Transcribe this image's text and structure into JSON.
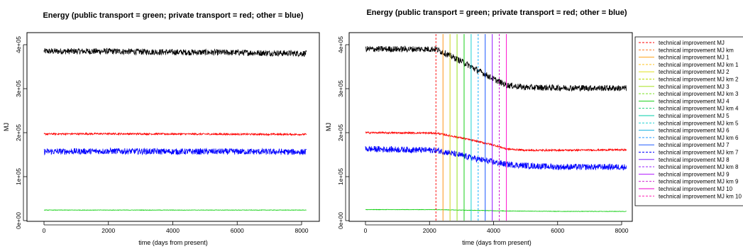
{
  "chart_data": [
    {
      "type": "line",
      "title": "Energy (public transport = green; private transport = red; other = blue)",
      "xlabel": "time (days from present)",
      "ylabel": "MJ",
      "xlim": [
        0,
        8200
      ],
      "ylim": [
        0,
        420000
      ],
      "x_ticks": [
        0,
        2000,
        4000,
        6000,
        8000
      ],
      "x_tick_labels": [
        "0",
        "2000",
        "4000",
        "6000",
        "8000"
      ],
      "y_ticks": [
        0,
        100000,
        200000,
        300000,
        400000
      ],
      "y_tick_labels": [
        "0e+00",
        "1e+05",
        "2e+05",
        "3e+05",
        "4e+05"
      ],
      "grid": false,
      "series": [
        {
          "color": "#000000",
          "x": [
            0,
            2000,
            4000,
            6000,
            8150
          ],
          "values": [
            385000,
            385000,
            383000,
            382000,
            380000
          ],
          "noise": 7000
        },
        {
          "color": "#ff0000",
          "x": [
            0,
            2000,
            4000,
            6000,
            8150
          ],
          "values": [
            197000,
            197500,
            197000,
            196500,
            196000
          ],
          "noise": 2000
        },
        {
          "color": "#0000ff",
          "x": [
            0,
            2000,
            4000,
            6000,
            8150
          ],
          "values": [
            157000,
            158000,
            157000,
            157000,
            156000
          ],
          "noise": 7000
        },
        {
          "color": "#00cc00",
          "x": [
            0,
            2000,
            4000,
            6000,
            8150
          ],
          "values": [
            24000,
            24000,
            24000,
            24000,
            24000
          ],
          "noise": 500
        }
      ]
    },
    {
      "type": "line",
      "title": "Energy (public transport = green; private transport = red; other = blue)",
      "xlabel": "time (days from present)",
      "ylabel": "MJ",
      "xlim": [
        0,
        8200
      ],
      "ylim": [
        0,
        420000
      ],
      "x_ticks": [
        0,
        2000,
        4000,
        6000,
        8000
      ],
      "x_tick_labels": [
        "0",
        "2000",
        "4000",
        "6000",
        "8000"
      ],
      "y_ticks": [
        0,
        100000,
        200000,
        300000,
        400000
      ],
      "y_tick_labels": [
        "0e+00",
        "1e+05",
        "2e+05",
        "3e+05",
        "4e+05"
      ],
      "grid": false,
      "legend_position": "right",
      "series": [
        {
          "color": "#000000",
          "x": [
            0,
            2200,
            2500,
            3000,
            3500,
            4000,
            4400,
            5000,
            6000,
            8150
          ],
          "values": [
            390000,
            390000,
            380000,
            362000,
            342000,
            322000,
            308000,
            303000,
            302000,
            301000
          ],
          "noise": 7000
        },
        {
          "color": "#ff0000",
          "x": [
            0,
            2200,
            2500,
            3000,
            3500,
            4000,
            4400,
            5000,
            6000,
            8150
          ],
          "values": [
            200000,
            199000,
            195000,
            188000,
            180000,
            172000,
            163000,
            160000,
            160000,
            161000
          ],
          "noise": 2000
        },
        {
          "color": "#0000ff",
          "x": [
            0,
            2200,
            2500,
            3000,
            3500,
            4000,
            4400,
            5000,
            6000,
            8150
          ],
          "values": [
            163000,
            160000,
            156000,
            148000,
            140000,
            133000,
            128000,
            125000,
            122000,
            122000
          ],
          "noise": 7000
        },
        {
          "color": "#00cc00",
          "x": [
            0,
            2200,
            4400,
            6000,
            8150
          ],
          "values": [
            25000,
            25000,
            22000,
            21000,
            21000
          ],
          "noise": 500
        }
      ],
      "vertical_lines": [
        {
          "x": 2200,
          "color": "#ff0000",
          "dashed": true
        },
        {
          "x": 2420,
          "color": "#ff8800",
          "dashed": false
        },
        {
          "x": 2640,
          "color": "#cccc00",
          "dashed": false
        },
        {
          "x": 2860,
          "color": "#88dd00",
          "dashed": false
        },
        {
          "x": 3080,
          "color": "#00cc00",
          "dashed": false
        },
        {
          "x": 3300,
          "color": "#00cccc",
          "dashed": false
        },
        {
          "x": 3520,
          "color": "#00aaff",
          "dashed": true
        },
        {
          "x": 3740,
          "color": "#0044ff",
          "dashed": false
        },
        {
          "x": 3960,
          "color": "#8800ff",
          "dashed": false
        },
        {
          "x": 4180,
          "color": "#cc00cc",
          "dashed": true
        },
        {
          "x": 4400,
          "color": "#ff00cc",
          "dashed": false
        }
      ],
      "legend": [
        {
          "label": "technical improvement  MJ",
          "color": "#ff0000",
          "dashed": true
        },
        {
          "label": "technical improvement  MJ km",
          "color": "#ff6600",
          "dashed": true
        },
        {
          "label": "technical improvement  MJ  1",
          "color": "#ff9900",
          "dashed": false
        },
        {
          "label": "technical improvement  MJ km  1",
          "color": "#ffbb00",
          "dashed": true
        },
        {
          "label": "technical improvement  MJ  2",
          "color": "#dddd00",
          "dashed": false
        },
        {
          "label": "technical improvement  MJ km  2",
          "color": "#bbdd00",
          "dashed": true
        },
        {
          "label": "technical improvement  MJ  3",
          "color": "#99dd00",
          "dashed": false
        },
        {
          "label": "technical improvement  MJ km  3",
          "color": "#66dd00",
          "dashed": true
        },
        {
          "label": "technical improvement  MJ  4",
          "color": "#00cc00",
          "dashed": false
        },
        {
          "label": "technical improvement  MJ km  4",
          "color": "#00cc66",
          "dashed": true
        },
        {
          "label": "technical improvement  MJ  5",
          "color": "#00ccaa",
          "dashed": false
        },
        {
          "label": "technical improvement  MJ km  5",
          "color": "#00cccc",
          "dashed": true
        },
        {
          "label": "technical improvement  MJ  6",
          "color": "#00aadd",
          "dashed": false
        },
        {
          "label": "technical improvement  MJ km  6",
          "color": "#0088ff",
          "dashed": true
        },
        {
          "label": "technical improvement  MJ  7",
          "color": "#0044ff",
          "dashed": false
        },
        {
          "label": "technical improvement  MJ km  7",
          "color": "#0000ff",
          "dashed": true
        },
        {
          "label": "technical improvement  MJ  8",
          "color": "#6600ff",
          "dashed": false
        },
        {
          "label": "technical improvement  MJ km  8",
          "color": "#8800ff",
          "dashed": true
        },
        {
          "label": "technical improvement  MJ  9",
          "color": "#aa00ff",
          "dashed": false
        },
        {
          "label": "technical improvement  MJ km  9",
          "color": "#cc00cc",
          "dashed": true
        },
        {
          "label": "technical improvement  MJ  10",
          "color": "#ee00cc",
          "dashed": false
        },
        {
          "label": "technical improvement  MJ km  10",
          "color": "#ff00aa",
          "dashed": true
        }
      ]
    }
  ]
}
